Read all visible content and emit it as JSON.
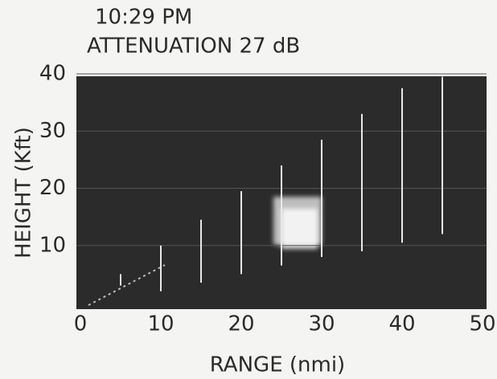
{
  "chart_data": {
    "type": "rhi",
    "title": "10:29 PM",
    "subtitle": "ATTENUATION 27 dB",
    "x_label": "RANGE (nmi)",
    "y_label": "HEIGHT (Kft)",
    "xlim": [
      0,
      50
    ],
    "xticks": [
      0,
      10,
      20,
      30,
      40,
      50
    ],
    "ylim": [
      0,
      40
    ],
    "yticks": [
      10,
      20,
      30,
      40
    ],
    "grid": true,
    "x": [
      5,
      10,
      15,
      20,
      25,
      30,
      35,
      40,
      45
    ],
    "low": [
      3,
      2,
      3.5,
      5,
      6.5,
      8,
      9,
      10.5,
      12
    ],
    "high": [
      5,
      10,
      14.5,
      19.5,
      24,
      28.5,
      33,
      37.5,
      39.5
    ],
    "color": "#e8e8e8"
  }
}
